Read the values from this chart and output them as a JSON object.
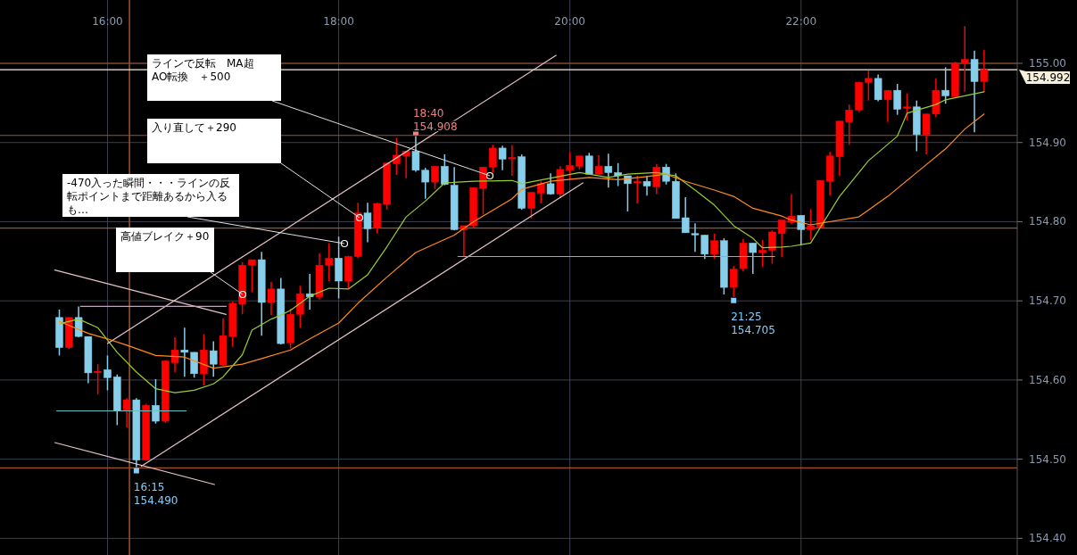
{
  "chart_data": {
    "type": "candlestick",
    "x": [
      15.5833,
      15.6667,
      15.75,
      15.8333,
      15.9167,
      16,
      16.0833,
      16.1667,
      16.25,
      16.3333,
      16.4167,
      16.5,
      16.5833,
      16.6667,
      16.75,
      16.8333,
      16.9167,
      17,
      17.0833,
      17.1667,
      17.25,
      17.3333,
      17.4167,
      17.5,
      17.5833,
      17.6667,
      17.75,
      17.8333,
      17.9167,
      18,
      18.0833,
      18.1667,
      18.25,
      18.3333,
      18.4167,
      18.5,
      18.5833,
      18.6667,
      18.75,
      18.8333,
      18.9167,
      19,
      19.0833,
      19.1667,
      19.25,
      19.3333,
      19.4167,
      19.5,
      19.5833,
      19.6667,
      19.75,
      19.8333,
      19.9167,
      20,
      20.0833,
      20.1667,
      20.25,
      20.3333,
      20.4167,
      20.5,
      20.5833,
      20.6667,
      20.75,
      20.8333,
      20.9167,
      21,
      21.0833,
      21.1667,
      21.25,
      21.3333,
      21.4167,
      21.5,
      21.5833,
      21.6667,
      21.75,
      21.8333,
      21.9167,
      22,
      22.0833,
      22.1667,
      22.25,
      22.3333,
      22.4167,
      22.5,
      22.5833,
      22.6667,
      22.75,
      22.8333,
      22.9167,
      23,
      23.0833,
      23.1667,
      23.25,
      23.3333,
      23.4167,
      23.5,
      23.5833
    ],
    "ohlc": [
      [
        154.679,
        154.689,
        154.631,
        154.641
      ],
      [
        154.641,
        154.679,
        154.639,
        154.679
      ],
      [
        154.679,
        154.693,
        154.654,
        154.655
      ],
      [
        154.655,
        154.655,
        154.596,
        154.609
      ],
      [
        154.61,
        154.62,
        154.582,
        154.611
      ],
      [
        154.613,
        154.631,
        154.587,
        154.603
      ],
      [
        154.604,
        154.607,
        154.543,
        154.561
      ],
      [
        154.561,
        154.577,
        154.54,
        154.575
      ],
      [
        154.575,
        154.577,
        154.49,
        154.499
      ],
      [
        154.499,
        154.57,
        154.498,
        154.568
      ],
      [
        154.568,
        154.601,
        154.545,
        154.548
      ],
      [
        154.548,
        154.625,
        154.546,
        154.624
      ],
      [
        154.622,
        154.654,
        154.61,
        154.638
      ],
      [
        154.638,
        154.666,
        154.604,
        154.635
      ],
      [
        154.635,
        154.635,
        154.603,
        154.608
      ],
      [
        154.608,
        154.658,
        154.593,
        154.638
      ],
      [
        154.637,
        154.649,
        154.604,
        154.62
      ],
      [
        154.619,
        154.678,
        154.618,
        154.656
      ],
      [
        154.655,
        154.699,
        154.642,
        154.697
      ],
      [
        154.696,
        154.749,
        154.683,
        154.745
      ],
      [
        154.745,
        154.752,
        154.711,
        154.752
      ],
      [
        154.752,
        154.762,
        154.656,
        154.698
      ],
      [
        154.698,
        154.724,
        154.682,
        154.715
      ],
      [
        154.715,
        154.729,
        154.645,
        154.646
      ],
      [
        154.647,
        154.69,
        154.64,
        154.683
      ],
      [
        154.683,
        154.719,
        154.666,
        154.709
      ],
      [
        154.709,
        154.734,
        154.689,
        154.705
      ],
      [
        154.705,
        154.76,
        154.702,
        154.745
      ],
      [
        154.745,
        154.773,
        154.725,
        154.754
      ],
      [
        154.754,
        154.781,
        154.703,
        154.725
      ],
      [
        154.725,
        154.757,
        154.716,
        154.756
      ],
      [
        154.756,
        154.824,
        154.754,
        154.811
      ],
      [
        154.811,
        154.824,
        154.774,
        154.791
      ],
      [
        154.792,
        154.824,
        154.785,
        154.823
      ],
      [
        154.822,
        154.874,
        154.815,
        154.874
      ],
      [
        154.873,
        154.906,
        154.859,
        154.884
      ],
      [
        154.883,
        154.889,
        154.855,
        154.889
      ],
      [
        154.889,
        154.908,
        154.863,
        154.865
      ],
      [
        154.865,
        154.868,
        154.829,
        154.85
      ],
      [
        154.85,
        154.87,
        154.841,
        154.87
      ],
      [
        154.87,
        154.885,
        154.846,
        154.847
      ],
      [
        154.846,
        154.869,
        154.789,
        154.79
      ],
      [
        154.79,
        154.795,
        154.756,
        154.795
      ],
      [
        154.795,
        154.843,
        154.792,
        154.843
      ],
      [
        154.842,
        154.869,
        154.809,
        154.869
      ],
      [
        154.869,
        154.897,
        154.862,
        154.893
      ],
      [
        154.893,
        154.896,
        154.865,
        154.879
      ],
      [
        154.88,
        154.897,
        154.858,
        154.881
      ],
      [
        154.882,
        154.885,
        154.815,
        154.817
      ],
      [
        154.817,
        154.837,
        154.804,
        154.837
      ],
      [
        154.836,
        154.851,
        154.823,
        154.848
      ],
      [
        154.848,
        154.861,
        154.834,
        154.835
      ],
      [
        154.835,
        154.87,
        154.83,
        154.866
      ],
      [
        154.865,
        154.888,
        154.854,
        154.871
      ],
      [
        154.87,
        154.883,
        154.866,
        154.883
      ],
      [
        154.883,
        154.887,
        154.86,
        154.86
      ],
      [
        154.86,
        154.884,
        154.86,
        154.87
      ],
      [
        154.87,
        154.886,
        154.843,
        154.862
      ],
      [
        154.862,
        154.874,
        154.845,
        154.858
      ],
      [
        154.858,
        154.858,
        154.813,
        154.848
      ],
      [
        154.849,
        154.858,
        154.823,
        154.851
      ],
      [
        154.851,
        154.858,
        154.833,
        154.845
      ],
      [
        154.844,
        154.873,
        154.835,
        154.869
      ],
      [
        154.869,
        154.873,
        154.847,
        154.851
      ],
      [
        154.851,
        154.861,
        154.804,
        154.804
      ],
      [
        154.805,
        154.831,
        154.786,
        154.786
      ],
      [
        154.785,
        154.798,
        154.762,
        154.784
      ],
      [
        154.783,
        154.783,
        154.753,
        154.759
      ],
      [
        154.759,
        154.785,
        154.753,
        154.776
      ],
      [
        154.776,
        154.779,
        154.708,
        154.717
      ],
      [
        154.717,
        154.744,
        154.705,
        154.74
      ],
      [
        154.741,
        154.778,
        154.737,
        154.773
      ],
      [
        154.773,
        154.773,
        154.734,
        154.761
      ],
      [
        154.761,
        154.777,
        154.743,
        154.764
      ],
      [
        154.764,
        154.789,
        154.747,
        154.787
      ],
      [
        154.785,
        154.802,
        154.755,
        154.802
      ],
      [
        154.799,
        154.835,
        154.797,
        154.807
      ],
      [
        154.808,
        154.808,
        154.77,
        154.79
      ],
      [
        154.79,
        154.816,
        154.777,
        154.795
      ],
      [
        154.793,
        154.852,
        154.792,
        154.852
      ],
      [
        154.851,
        154.888,
        154.833,
        154.883
      ],
      [
        154.882,
        154.927,
        154.858,
        154.927
      ],
      [
        154.926,
        154.948,
        154.897,
        154.941
      ],
      [
        154.941,
        154.977,
        154.939,
        154.976
      ],
      [
        154.976,
        154.991,
        154.953,
        154.981
      ],
      [
        154.981,
        154.986,
        154.952,
        154.954
      ],
      [
        154.954,
        154.966,
        154.926,
        154.966
      ],
      [
        154.966,
        154.974,
        154.935,
        154.942
      ],
      [
        154.944,
        154.962,
        154.928,
        154.945
      ],
      [
        154.945,
        154.953,
        154.889,
        154.91
      ],
      [
        154.91,
        154.936,
        154.885,
        154.936
      ],
      [
        154.936,
        154.981,
        154.932,
        154.966
      ],
      [
        154.966,
        154.995,
        154.949,
        154.959
      ],
      [
        154.958,
        155.002,
        154.958,
        155.0
      ],
      [
        155.0,
        155.047,
        154.964,
        155.005
      ],
      [
        155.005,
        155.016,
        154.913,
        154.977
      ],
      [
        154.977,
        155.017,
        154.964,
        154.992
      ]
    ],
    "colors": [
      "#87ceeb",
      "#ff0000",
      "#87ceeb",
      "#87ceeb",
      "#ff0000",
      "#87ceeb",
      "#87ceeb",
      "#ff0000",
      "#87ceeb",
      "#ff0000",
      "#87ceeb",
      "#ff0000",
      "#ff0000",
      "#87ceeb",
      "#87ceeb",
      "#ff0000",
      "#87ceeb",
      "#ff0000",
      "#ff0000",
      "#ff0000",
      "#ff0000",
      "#87ceeb",
      "#ff0000",
      "#87ceeb",
      "#ff0000",
      "#ff0000",
      "#87ceeb",
      "#ff0000",
      "#ff0000",
      "#87ceeb",
      "#ff0000",
      "#ff0000",
      "#87ceeb",
      "#ff0000",
      "#ff0000",
      "#ff0000",
      "#ff0000",
      "#87ceeb",
      "#87ceeb",
      "#ff0000",
      "#87ceeb",
      "#87ceeb",
      "#ff0000",
      "#ff0000",
      "#ff0000",
      "#ff0000",
      "#87ceeb",
      "#ff0000",
      "#87ceeb",
      "#ff0000",
      "#ff0000",
      "#87ceeb",
      "#ff0000",
      "#ff0000",
      "#ff0000",
      "#87ceeb",
      "#ff0000",
      "#87ceeb",
      "#87ceeb",
      "#87ceeb",
      "#ff0000",
      "#87ceeb",
      "#ff0000",
      "#87ceeb",
      "#87ceeb",
      "#87ceeb",
      "#87ceeb",
      "#87ceeb",
      "#ff0000",
      "#87ceeb",
      "#ff0000",
      "#ff0000",
      "#87ceeb",
      "#ff0000",
      "#ff0000",
      "#ff0000",
      "#ff0000",
      "#87ceeb",
      "#ff0000",
      "#ff0000",
      "#ff0000",
      "#ff0000",
      "#ff0000",
      "#ff0000",
      "#ff0000",
      "#87ceeb",
      "#ff0000",
      "#87ceeb",
      "#ff0000",
      "#87ceeb",
      "#ff0000",
      "#ff0000",
      "#87ceeb",
      "#ff0000",
      "#ff0000",
      "#87ceeb",
      "#ff0000"
    ],
    "series": [
      {
        "type": "line",
        "color": "#9acd32",
        "x": [
          15.5833,
          15.75,
          15.9167,
          16.0833,
          16.25,
          16.4167,
          16.5833,
          16.75,
          16.9167,
          17,
          17.1667,
          17.25,
          17.4167,
          17.5,
          17.5833,
          17.75,
          17.9167,
          18.0833,
          18.25,
          18.4167,
          18.5833,
          18.75,
          18.9167,
          19.1667,
          19.5,
          19.5833,
          19.8333,
          20.0833,
          20.3333,
          20.5,
          20.75,
          20.9167,
          21.0833,
          21.25,
          21.4167,
          21.5833,
          21.6667,
          21.8333,
          21.9167,
          22.0833,
          22.3333,
          22.5833,
          22.8333,
          22.9167,
          23.1667,
          23.25,
          23.5833
        ],
        "values": [
          154.671,
          154.677,
          154.666,
          154.635,
          154.61,
          154.589,
          154.584,
          154.587,
          154.595,
          154.604,
          154.632,
          154.663,
          154.677,
          154.682,
          154.688,
          154.706,
          154.716,
          154.715,
          154.733,
          154.768,
          154.806,
          154.826,
          154.849,
          154.851,
          154.852,
          154.848,
          154.855,
          154.862,
          154.856,
          154.86,
          154.862,
          154.858,
          154.84,
          154.821,
          154.795,
          154.779,
          154.767,
          154.768,
          154.769,
          154.773,
          154.832,
          154.877,
          154.908,
          154.937,
          154.948,
          154.954,
          154.964
        ]
      },
      {
        "type": "line",
        "color": "#ff8c1a",
        "x": [
          15.5833,
          15.8333,
          16,
          16.1667,
          16.4167,
          16.6667,
          16.9167,
          17.1667,
          17.3333,
          17.5833,
          17.75,
          18,
          18.1667,
          18.4167,
          18.6667,
          19,
          19.1667,
          19.5,
          19.5833,
          19.8333,
          20.1667,
          20.4167,
          20.6667,
          20.8333,
          21,
          21.25,
          21.4167,
          21.5833,
          21.8333,
          21.9167,
          22.0833,
          22.5,
          22.75,
          23,
          23.25,
          23.4167,
          23.5833
        ],
        "values": [
          154.674,
          154.659,
          154.652,
          154.644,
          154.631,
          154.629,
          154.615,
          154.62,
          154.627,
          154.638,
          154.652,
          154.672,
          154.697,
          154.73,
          154.761,
          154.783,
          154.8,
          154.829,
          154.841,
          154.851,
          154.856,
          154.853,
          154.857,
          154.86,
          154.851,
          154.84,
          154.832,
          154.817,
          154.807,
          154.802,
          154.796,
          154.806,
          154.832,
          154.862,
          154.892,
          154.917,
          154.936
        ]
      },
      {
        "type": "line",
        "color": "#e6c3c3",
        "x": [
          16.0,
          19.881
        ],
        "values": [
          154.646,
          155.01
        ]
      },
      {
        "type": "line",
        "color": "#e6c3c3",
        "x": [
          16.293,
          20.113
        ],
        "values": [
          154.491,
          154.849
        ]
      },
      {
        "type": "line",
        "color": "#e6c3c3",
        "x": [
          15.545,
          17.026
        ],
        "values": [
          154.739,
          154.683
        ]
      },
      {
        "type": "line",
        "color": "#e6c3c3",
        "x": [
          15.545,
          16.926
        ],
        "values": [
          154.521,
          154.468
        ]
      },
      {
        "type": "line",
        "color": "#66c2c2",
        "x": [
          15.56,
          16.68
        ],
        "values": [
          154.561,
          154.561
        ]
      },
      {
        "type": "line",
        "color": "#66c2c2",
        "x": [
          19.032,
          21.772
        ],
        "values": [
          154.756,
          154.756
        ]
      },
      {
        "type": "line",
        "color": "#ee82ee",
        "x": [
          15.768,
          17.026
        ],
        "values": [
          154.693,
          154.693
        ]
      }
    ],
    "ref_lines": [
      {
        "axis": "y",
        "value": 155.0,
        "color": "#a0522d"
      },
      {
        "axis": "y",
        "value": 154.909,
        "color": "#a0522d"
      },
      {
        "axis": "y",
        "value": 154.792,
        "color": "#a0522d"
      },
      {
        "axis": "y",
        "value": 154.489,
        "color": "#a0522d"
      },
      {
        "axis": "x",
        "value": 16.19,
        "color": "#a0522d"
      },
      {
        "axis": "y",
        "value": 154.992,
        "label": "154.992",
        "color": "#f5f0dc"
      }
    ],
    "annotations": [
      "ラインで反転　MA超　AO転換　＋500",
      "入り直して＋290",
      "-470入った瞬間・・・ラインの反転ポイントまで距離あるから入るも…",
      "高値ブレイク＋90",
      {
        "text": "18:40 154.908",
        "x": 18.6667,
        "y": 154.908
      },
      {
        "text": "16:15 154.490",
        "x": 16.25,
        "y": 154.49
      },
      {
        "text": "21:25 154.705",
        "x": 21.4167,
        "y": 154.705
      }
    ],
    "xlim": [
      15.07,
      23.87
    ],
    "ylim": [
      154.379,
      155.08
    ],
    "xticks": [
      {
        "value": 16,
        "label": "16:00"
      },
      {
        "value": 18,
        "label": "18:00"
      },
      {
        "value": 20,
        "label": "20:00"
      },
      {
        "value": 22,
        "label": "22:00"
      }
    ],
    "yticks": [
      {
        "value": 154.4,
        "label": "154.40"
      },
      {
        "value": 154.5,
        "label": "154.50"
      },
      {
        "value": 154.6,
        "label": "154.60"
      },
      {
        "value": 154.7,
        "label": "154.70"
      },
      {
        "value": 154.8,
        "label": "154.80"
      },
      {
        "value": 154.9,
        "label": "154.90"
      },
      {
        "value": 155.0,
        "label": "155.00"
      }
    ],
    "grid": true
  }
}
